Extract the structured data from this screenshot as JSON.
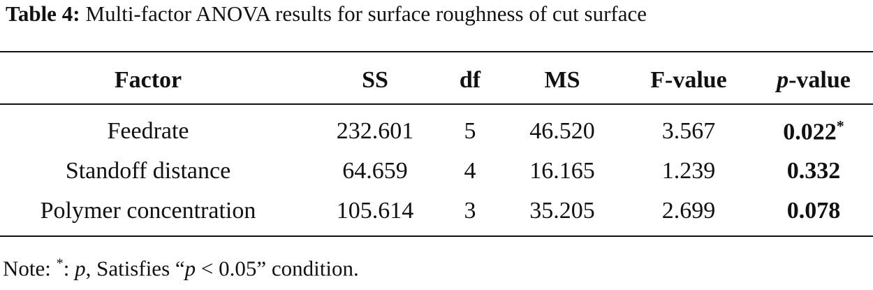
{
  "caption": {
    "label": "Table 4:",
    "text": "Multi-factor ANOVA results for surface roughness of cut surface"
  },
  "table": {
    "header": [
      "Factor",
      "SS",
      "df",
      "MS",
      "F-value",
      [
        "p",
        "-value"
      ]
    ],
    "rows": [
      {
        "cells": [
          "Feedrate",
          "232.601",
          "5",
          "46.520",
          "3.567",
          "0.022"
        ],
        "mark": "*"
      },
      {
        "cells": [
          "Standoff distance",
          "64.659",
          "4",
          "16.165",
          "1.239",
          "0.332"
        ]
      },
      {
        "cells": [
          "Polymer concentration",
          "105.614",
          "3",
          "35.205",
          "2.699",
          "0.078"
        ]
      }
    ]
  },
  "note": [
    "Note: ",
    "*",
    ": ",
    "p",
    ", Satisfies “",
    "p",
    " < 0.05” condition."
  ]
}
